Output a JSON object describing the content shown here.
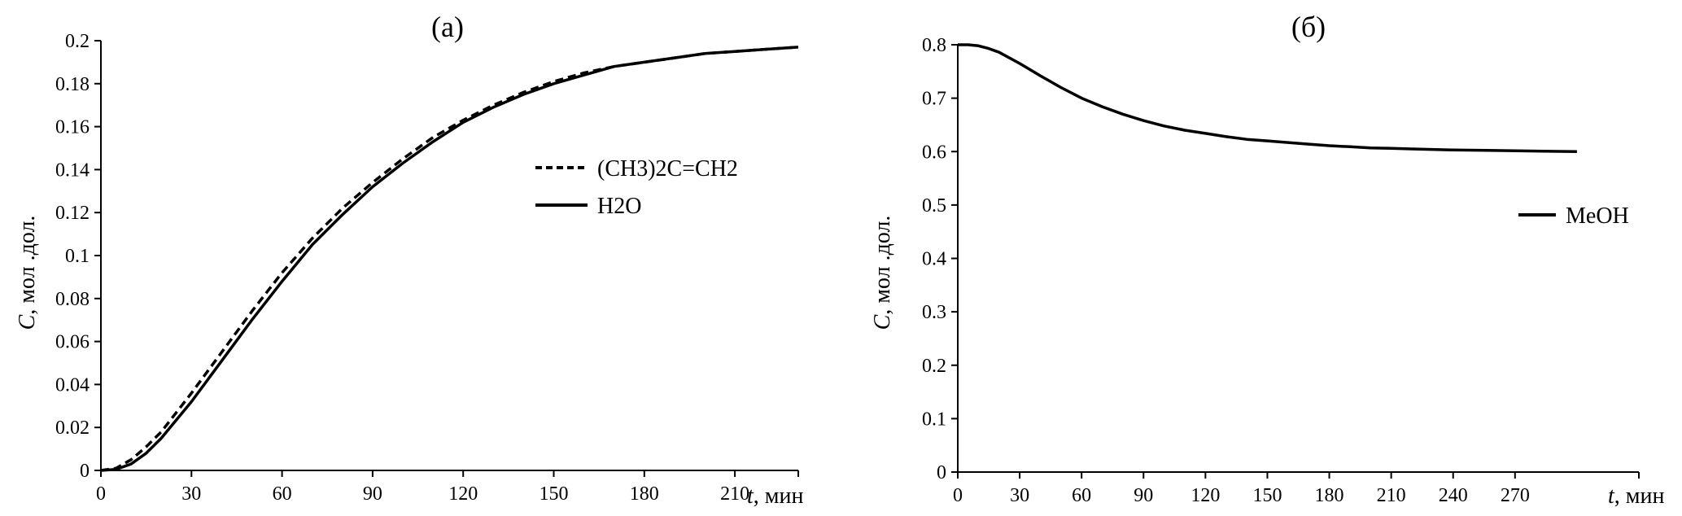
{
  "chart_data": [
    {
      "type": "line",
      "title": "(а)",
      "ylabel_symbol": "C",
      "ylabel_rest": ", мол .дол.",
      "xlabel_symbol": "t",
      "xlabel_rest": ", мин",
      "xlim": [
        0,
        231
      ],
      "ylim": [
        0,
        0.2
      ],
      "x_ticks": [
        "0",
        "30",
        "60",
        "90",
        "120",
        "150",
        "180",
        "210"
      ],
      "y_ticks": [
        "0",
        "0.02",
        "0.04",
        "0.06",
        "0.08",
        "0.1",
        "0.12",
        "0.14",
        "0.16",
        "0.18",
        "0.2"
      ],
      "grid": false,
      "legend_position": "right",
      "series": [
        {
          "name": "(CH3)2C=CH2",
          "style": "dashed",
          "color": "#000000",
          "x": [
            0,
            5,
            10,
            15,
            20,
            30,
            40,
            50,
            60,
            70,
            80,
            90,
            100,
            110,
            120,
            130,
            140,
            150,
            160,
            170,
            180,
            190,
            200,
            210,
            220,
            231
          ],
          "y": [
            0,
            0.001,
            0.005,
            0.011,
            0.018,
            0.036,
            0.055,
            0.074,
            0.092,
            0.108,
            0.122,
            0.134,
            0.145,
            0.155,
            0.163,
            0.17,
            0.176,
            0.181,
            0.185,
            0.188,
            0.19,
            0.192,
            0.194,
            0.195,
            0.196,
            0.197
          ]
        },
        {
          "name": "H2O",
          "style": "solid",
          "color": "#000000",
          "x": [
            0,
            5,
            10,
            15,
            20,
            30,
            40,
            50,
            60,
            70,
            80,
            90,
            100,
            110,
            120,
            130,
            140,
            150,
            160,
            170,
            180,
            190,
            200,
            210,
            220,
            231
          ],
          "y": [
            0,
            0.0005,
            0.003,
            0.008,
            0.015,
            0.032,
            0.051,
            0.07,
            0.088,
            0.105,
            0.119,
            0.132,
            0.143,
            0.153,
            0.162,
            0.169,
            0.175,
            0.18,
            0.184,
            0.188,
            0.19,
            0.192,
            0.194,
            0.195,
            0.196,
            0.197
          ]
        }
      ]
    },
    {
      "type": "line",
      "title": "(б)",
      "ylabel_symbol": "C",
      "ylabel_rest": ", мол .дол.",
      "xlabel_symbol": "t",
      "xlabel_rest": ", мин",
      "xlim": [
        0,
        330
      ],
      "ylim": [
        0,
        0.8
      ],
      "x_ticks": [
        "0",
        "30",
        "60",
        "90",
        "120",
        "150",
        "180",
        "210",
        "240",
        "270"
      ],
      "y_ticks": [
        "0",
        "0.1",
        "0.2",
        "0.3",
        "0.4",
        "0.5",
        "0.6",
        "0.7",
        "0.8"
      ],
      "grid": false,
      "legend_position": "right",
      "series": [
        {
          "name": "MeOH",
          "style": "solid",
          "color": "#000000",
          "x": [
            0,
            5,
            10,
            15,
            20,
            30,
            40,
            50,
            60,
            70,
            80,
            90,
            100,
            110,
            120,
            130,
            140,
            150,
            160,
            170,
            180,
            190,
            200,
            210,
            220,
            240,
            260,
            280,
            300
          ],
          "y": [
            0.8,
            0.8,
            0.798,
            0.793,
            0.786,
            0.765,
            0.742,
            0.72,
            0.7,
            0.684,
            0.67,
            0.658,
            0.648,
            0.64,
            0.634,
            0.628,
            0.623,
            0.62,
            0.617,
            0.614,
            0.611,
            0.609,
            0.607,
            0.606,
            0.605,
            0.603,
            0.602,
            0.601,
            0.6
          ]
        }
      ]
    }
  ]
}
